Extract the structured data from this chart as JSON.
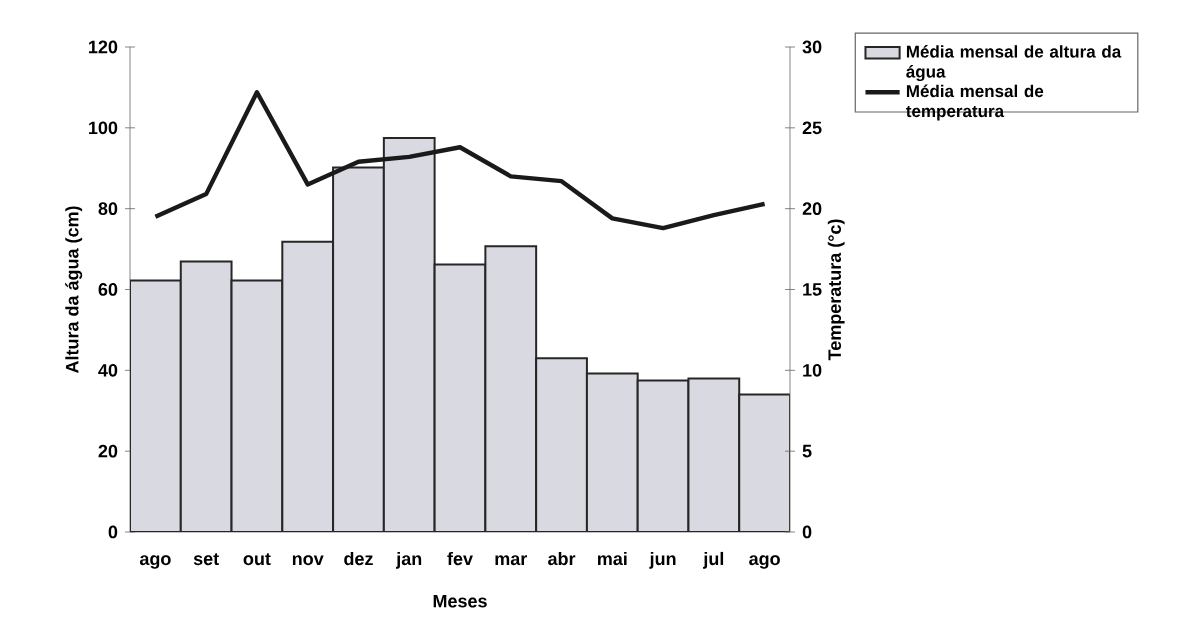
{
  "chart_data": {
    "type": "bar",
    "xlabel": "Meses",
    "ylabel": "Altura da água (cm)",
    "y2label": "Temperatura (°c)",
    "categories": [
      "ago",
      "set",
      "out",
      "nov",
      "dez",
      "jan",
      "fev",
      "mar",
      "abr",
      "mai",
      "jun",
      "jul",
      "ago"
    ],
    "series": [
      {
        "name": "Média mensal de altura da água",
        "color": "#d9d9e1",
        "values": [
          62.2,
          66.9,
          62.2,
          71.8,
          90.2,
          97.5,
          66.2,
          70.7,
          43.0,
          39.2,
          37.5,
          38.0,
          34.0
        ]
      },
      {
        "name": "Média mensal de temperatura",
        "type": "line",
        "axis": "y2",
        "color": "#1a1a1a",
        "values": [
          19.5,
          20.9,
          27.2,
          21.5,
          22.9,
          23.2,
          23.8,
          22.0,
          21.7,
          19.4,
          18.8,
          19.6,
          20.3
        ]
      }
    ],
    "ylim": [
      0,
      120
    ],
    "yticks": [
      0,
      20,
      40,
      60,
      80,
      100,
      120
    ],
    "y2lim": [
      0,
      30
    ],
    "y2ticks": [
      0,
      5,
      10,
      15,
      20,
      25,
      30
    ],
    "legend": "top right",
    "grid": false,
    "marker": "none",
    "line_style": "solid"
  }
}
